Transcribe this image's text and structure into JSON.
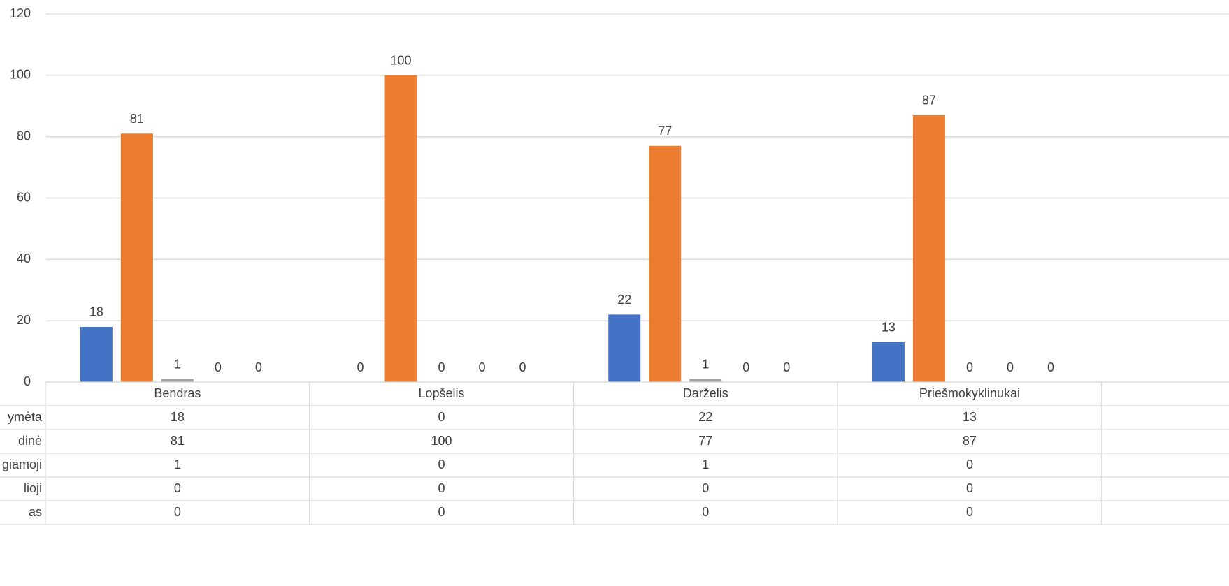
{
  "chart_data": {
    "type": "bar",
    "categories": [
      "Bendras",
      "Lopšelis",
      "Darželis",
      "Priešmokyklinukai"
    ],
    "series": [
      {
        "name": "ymėta",
        "color": "#4472c4",
        "values": [
          18,
          0,
          22,
          13
        ]
      },
      {
        "name": "dinė",
        "color": "#ed7d31",
        "values": [
          81,
          100,
          77,
          87
        ]
      },
      {
        "name": "giamoji",
        "color": "#a5a5a5",
        "values": [
          1,
          0,
          1,
          0
        ]
      },
      {
        "name": "lioji",
        "color": "#ffc000",
        "values": [
          0,
          0,
          0,
          0
        ]
      },
      {
        "name": "as",
        "color": "#5b9bd5",
        "values": [
          0,
          0,
          0,
          0
        ]
      }
    ],
    "ylim": [
      0,
      120
    ],
    "yticks": [
      0,
      20,
      40,
      60,
      80,
      100,
      120
    ],
    "grid": true,
    "data_table": true
  }
}
